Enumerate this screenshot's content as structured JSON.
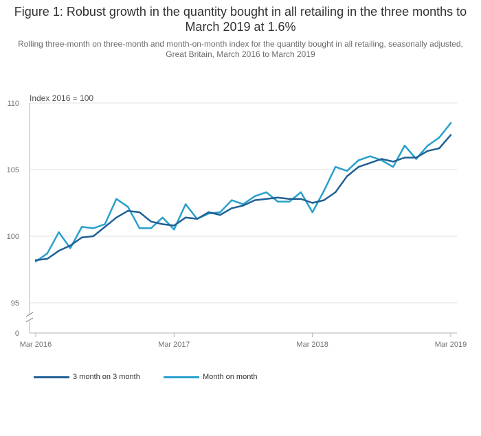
{
  "title": "Figure 1: Robust growth in the quantity bought in all retailing in the three months to March 2019 at 1.6%",
  "subtitle": "Rolling three-month on three-month and month-on-month index for the quantity bought in all retailing, seasonally adjusted, Great Britain, March 2016 to March 2019",
  "chart_data": {
    "type": "line",
    "title": "Figure 1: Robust growth in the quantity bought in all retailing in the three months to March 2019 at 1.6%",
    "ylabel": "Index 2016 = 100",
    "xlabel": "",
    "ylim": [
      95,
      110
    ],
    "y_axis_break": true,
    "y_zero_label": "0",
    "yticks": [
      "95",
      "100",
      "105",
      "110"
    ],
    "xticks": [
      "Mar 2016",
      "Mar 2017",
      "Mar 2018",
      "Mar 2019"
    ],
    "x": [
      "Mar 2016",
      "Apr 2016",
      "May 2016",
      "Jun 2016",
      "Jul 2016",
      "Aug 2016",
      "Sep 2016",
      "Oct 2016",
      "Nov 2016",
      "Dec 2016",
      "Jan 2017",
      "Feb 2017",
      "Mar 2017",
      "Apr 2017",
      "May 2017",
      "Jun 2017",
      "Jul 2017",
      "Aug 2017",
      "Sep 2017",
      "Oct 2017",
      "Nov 2017",
      "Dec 2017",
      "Jan 2018",
      "Feb 2018",
      "Mar 2018",
      "Apr 2018",
      "May 2018",
      "Jun 2018",
      "Jul 2018",
      "Aug 2018",
      "Sep 2018",
      "Oct 2018",
      "Nov 2018",
      "Dec 2018",
      "Jan 2019",
      "Feb 2019",
      "Mar 2019"
    ],
    "grid": true,
    "series": [
      {
        "name": "3 month on 3 month",
        "color": "#206095",
        "values": [
          98.2,
          98.3,
          98.9,
          99.3,
          99.9,
          100.0,
          100.7,
          101.4,
          101.9,
          101.8,
          101.1,
          100.9,
          100.8,
          101.4,
          101.3,
          101.8,
          101.6,
          102.1,
          102.3,
          102.7,
          102.8,
          102.9,
          102.8,
          102.8,
          102.5,
          102.7,
          103.3,
          104.5,
          105.2,
          105.5,
          105.8,
          105.6,
          105.9,
          105.9,
          106.4,
          106.6,
          107.6
        ]
      },
      {
        "name": "Month on month",
        "color": "#27a0cc",
        "values": [
          98.1,
          98.7,
          100.3,
          99.1,
          100.7,
          100.6,
          100.9,
          102.8,
          102.2,
          100.6,
          100.6,
          101.4,
          100.5,
          102.4,
          101.3,
          101.7,
          101.8,
          102.7,
          102.4,
          103.0,
          103.3,
          102.6,
          102.6,
          103.3,
          101.8,
          103.4,
          105.2,
          104.9,
          105.7,
          106.0,
          105.7,
          105.2,
          106.8,
          105.8,
          106.8,
          107.4,
          108.5
        ]
      }
    ],
    "legend_position": "bottom-left"
  }
}
